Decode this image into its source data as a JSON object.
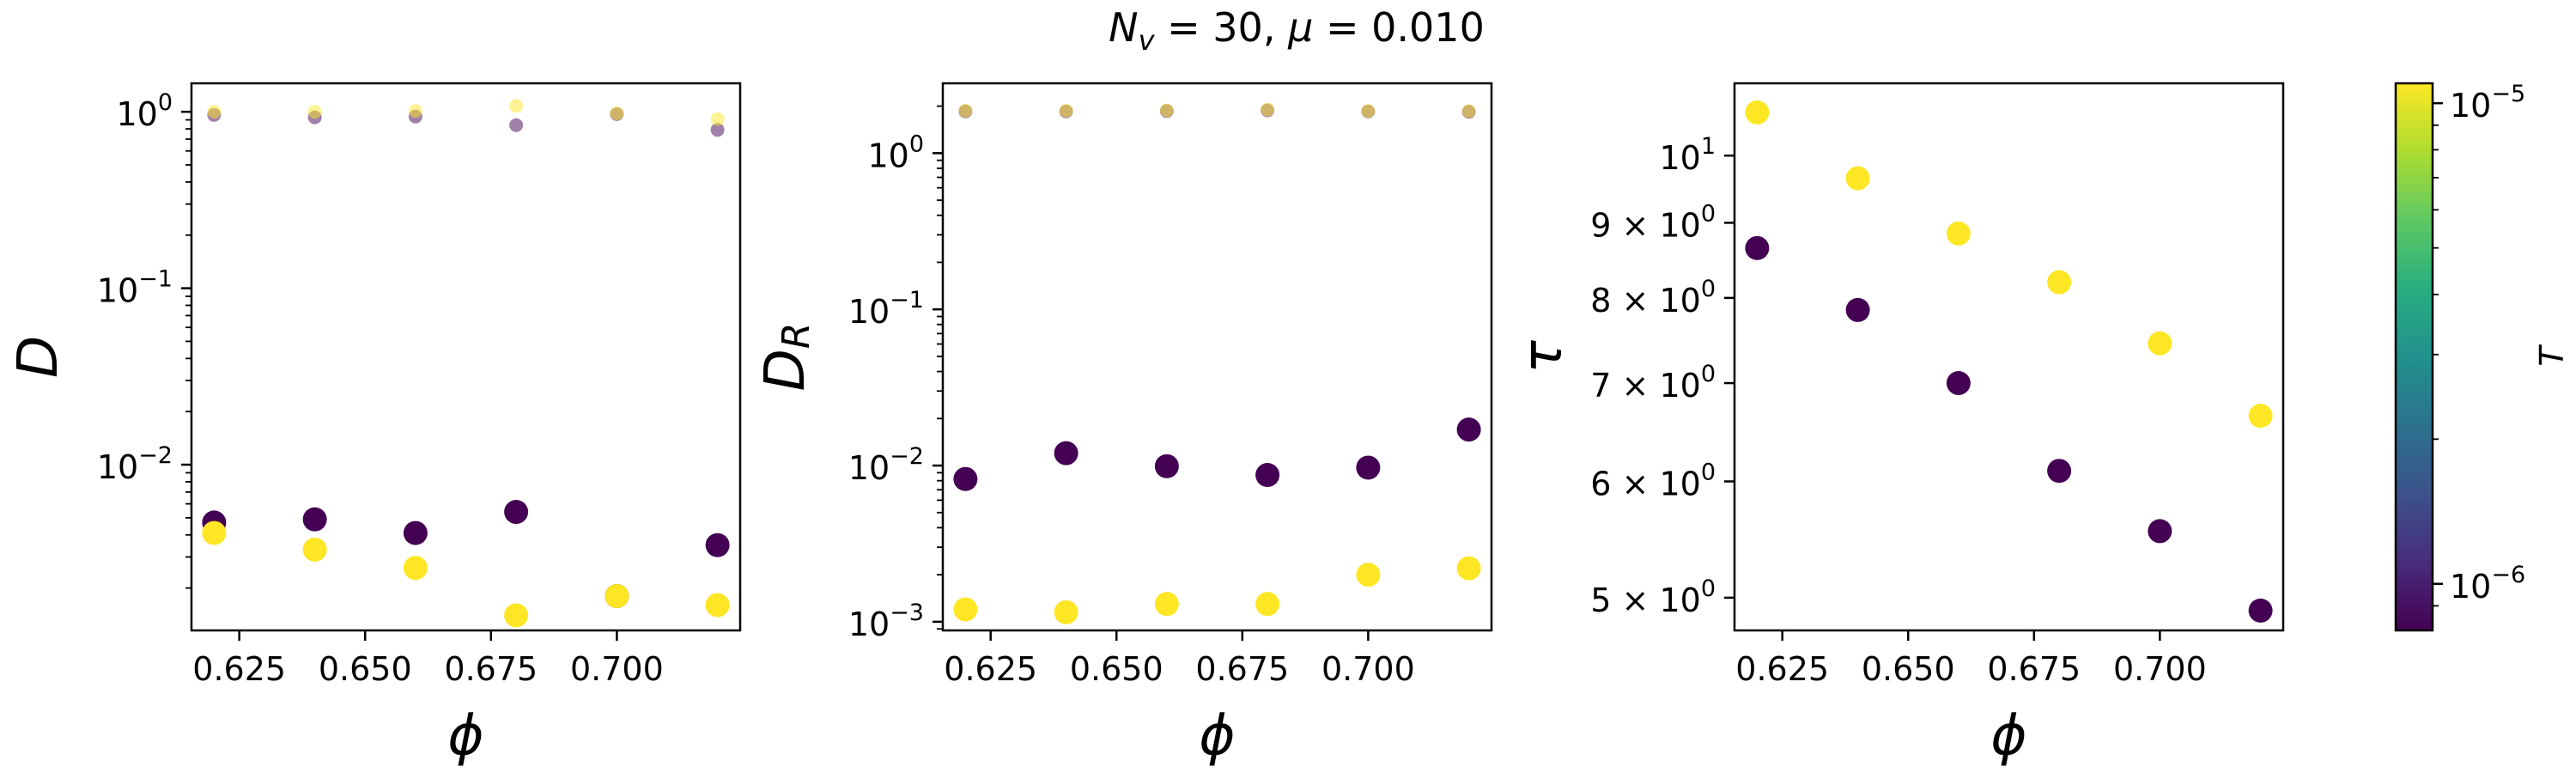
{
  "figure": {
    "title_parts": [
      "N",
      "v",
      " = 30, ",
      "μ",
      " = 0.010"
    ]
  },
  "colorbar": {
    "label": "T",
    "scale": "log",
    "range": [
      8e-07,
      1.1e-05
    ],
    "colormap": "viridis",
    "colormap_stops": [
      "#440154",
      "#472d7b",
      "#3b528b",
      "#2c728e",
      "#21918c",
      "#28ae80",
      "#5ec962",
      "#addc30",
      "#fde725"
    ],
    "ticks": [
      {
        "value": 1e-05,
        "mantissa": "10",
        "exponent": "−5"
      },
      {
        "value": 1e-06,
        "mantissa": "10",
        "exponent": "−6"
      }
    ]
  },
  "chart_data": [
    {
      "type": "scatter",
      "ylabel": "D",
      "xlabel": "ϕ",
      "yscale": "log",
      "xlim": [
        0.6155,
        0.7245
      ],
      "ylim": [
        0.00115,
        1.45
      ],
      "xticks": [
        "0.625",
        "0.650",
        "0.675",
        "0.700"
      ],
      "yticks": [
        {
          "value": 1,
          "mantissa": "10",
          "exponent": "0"
        },
        {
          "value": 0.1,
          "mantissa": "10",
          "exponent": "−1"
        },
        {
          "value": 0.01,
          "mantissa": "10",
          "exponent": "−2"
        }
      ],
      "grid": false,
      "series": [
        {
          "T": 1e-06,
          "color": "#440154",
          "marker": "large",
          "opacity": 1,
          "points": [
            [
              0.62,
              0.0047
            ],
            [
              0.64,
              0.0049
            ],
            [
              0.66,
              0.0041
            ],
            [
              0.68,
              0.0054
            ],
            [
              0.7,
              0.0018
            ],
            [
              0.72,
              0.0035
            ]
          ]
        },
        {
          "T": 1e-05,
          "color": "#fde725",
          "marker": "large",
          "opacity": 1,
          "points": [
            [
              0.62,
              0.0041
            ],
            [
              0.64,
              0.0033
            ],
            [
              0.66,
              0.0026
            ],
            [
              0.68,
              0.0014
            ],
            [
              0.7,
              0.0018
            ],
            [
              0.72,
              0.0016
            ]
          ]
        },
        {
          "T": 1e-06,
          "color": "#440154",
          "marker": "small",
          "opacity": 0.5,
          "points": [
            [
              0.62,
              0.96
            ],
            [
              0.64,
              0.93
            ],
            [
              0.66,
              0.94
            ],
            [
              0.68,
              0.84
            ],
            [
              0.7,
              0.97
            ],
            [
              0.72,
              0.79
            ]
          ]
        },
        {
          "T": 1e-05,
          "color": "#fde725",
          "marker": "small",
          "opacity": 0.5,
          "points": [
            [
              0.62,
              1.0
            ],
            [
              0.64,
              1.0
            ],
            [
              0.66,
              1.01
            ],
            [
              0.68,
              1.08
            ],
            [
              0.7,
              0.98
            ],
            [
              0.72,
              0.91
            ]
          ]
        }
      ]
    },
    {
      "type": "scatter",
      "ylabel": "D",
      "ylabel_sub": "R",
      "xlabel": "ϕ",
      "yscale": "log",
      "xlim": [
        0.6155,
        0.7245
      ],
      "ylim": [
        0.00088,
        2.8
      ],
      "xticks": [
        "0.625",
        "0.650",
        "0.675",
        "0.700"
      ],
      "yticks": [
        {
          "value": 1,
          "mantissa": "10",
          "exponent": "0"
        },
        {
          "value": 0.1,
          "mantissa": "10",
          "exponent": "−1"
        },
        {
          "value": 0.01,
          "mantissa": "10",
          "exponent": "−2"
        },
        {
          "value": 0.001,
          "mantissa": "10",
          "exponent": "−3"
        }
      ],
      "grid": false,
      "series": [
        {
          "T": 1e-06,
          "color": "#440154",
          "marker": "large",
          "opacity": 1,
          "points": [
            [
              0.62,
              0.0082
            ],
            [
              0.64,
              0.012
            ],
            [
              0.66,
              0.0099
            ],
            [
              0.68,
              0.0087
            ],
            [
              0.7,
              0.0097
            ],
            [
              0.72,
              0.017
            ]
          ]
        },
        {
          "T": 1e-05,
          "color": "#fde725",
          "marker": "large",
          "opacity": 1,
          "points": [
            [
              0.62,
              0.0012
            ],
            [
              0.64,
              0.00115
            ],
            [
              0.66,
              0.0013
            ],
            [
              0.68,
              0.0013
            ],
            [
              0.7,
              0.002
            ],
            [
              0.72,
              0.0022
            ]
          ]
        },
        {
          "T": 1e-06,
          "color": "#440154",
          "marker": "small",
          "opacity": 0.5,
          "points": [
            [
              0.62,
              1.85
            ],
            [
              0.64,
              1.85
            ],
            [
              0.66,
              1.86
            ],
            [
              0.68,
              1.88
            ],
            [
              0.7,
              1.85
            ],
            [
              0.72,
              1.84
            ]
          ]
        },
        {
          "T": 1e-05,
          "color": "#fde725",
          "marker": "small",
          "opacity": 0.5,
          "points": [
            [
              0.62,
              1.87
            ],
            [
              0.64,
              1.87
            ],
            [
              0.66,
              1.88
            ],
            [
              0.68,
              1.9
            ],
            [
              0.7,
              1.86
            ],
            [
              0.72,
              1.86
            ]
          ]
        }
      ]
    },
    {
      "type": "scatter",
      "ylabel": "τ",
      "xlabel": "ϕ",
      "yscale": "log",
      "xlim": [
        0.6155,
        0.7245
      ],
      "ylim": [
        4.75,
        11.2
      ],
      "xticks": [
        "0.625",
        "0.650",
        "0.675",
        "0.700"
      ],
      "yticks": [
        {
          "value": 10,
          "mantissa": "10",
          "exponent": "1",
          "prefix": ""
        },
        {
          "value": 9,
          "mantissa": "10",
          "exponent": "0",
          "prefix": "9 × "
        },
        {
          "value": 8,
          "mantissa": "10",
          "exponent": "0",
          "prefix": "8 × "
        },
        {
          "value": 7,
          "mantissa": "10",
          "exponent": "0",
          "prefix": "7 × "
        },
        {
          "value": 6,
          "mantissa": "10",
          "exponent": "0",
          "prefix": "6 × "
        },
        {
          "value": 5,
          "mantissa": "10",
          "exponent": "0",
          "prefix": "5 × "
        }
      ],
      "grid": false,
      "series": [
        {
          "T": 1e-06,
          "color": "#440154",
          "marker": "large",
          "opacity": 1,
          "points": [
            [
              0.62,
              8.65
            ],
            [
              0.64,
              7.85
            ],
            [
              0.66,
              7.0
            ],
            [
              0.68,
              6.1
            ],
            [
              0.7,
              5.55
            ],
            [
              0.72,
              4.9
            ]
          ]
        },
        {
          "T": 1e-05,
          "color": "#fde725",
          "marker": "large",
          "opacity": 1,
          "points": [
            [
              0.62,
              10.7
            ],
            [
              0.64,
              9.65
            ],
            [
              0.66,
              8.85
            ],
            [
              0.68,
              8.2
            ],
            [
              0.7,
              7.45
            ],
            [
              0.72,
              6.65
            ]
          ]
        }
      ]
    }
  ]
}
